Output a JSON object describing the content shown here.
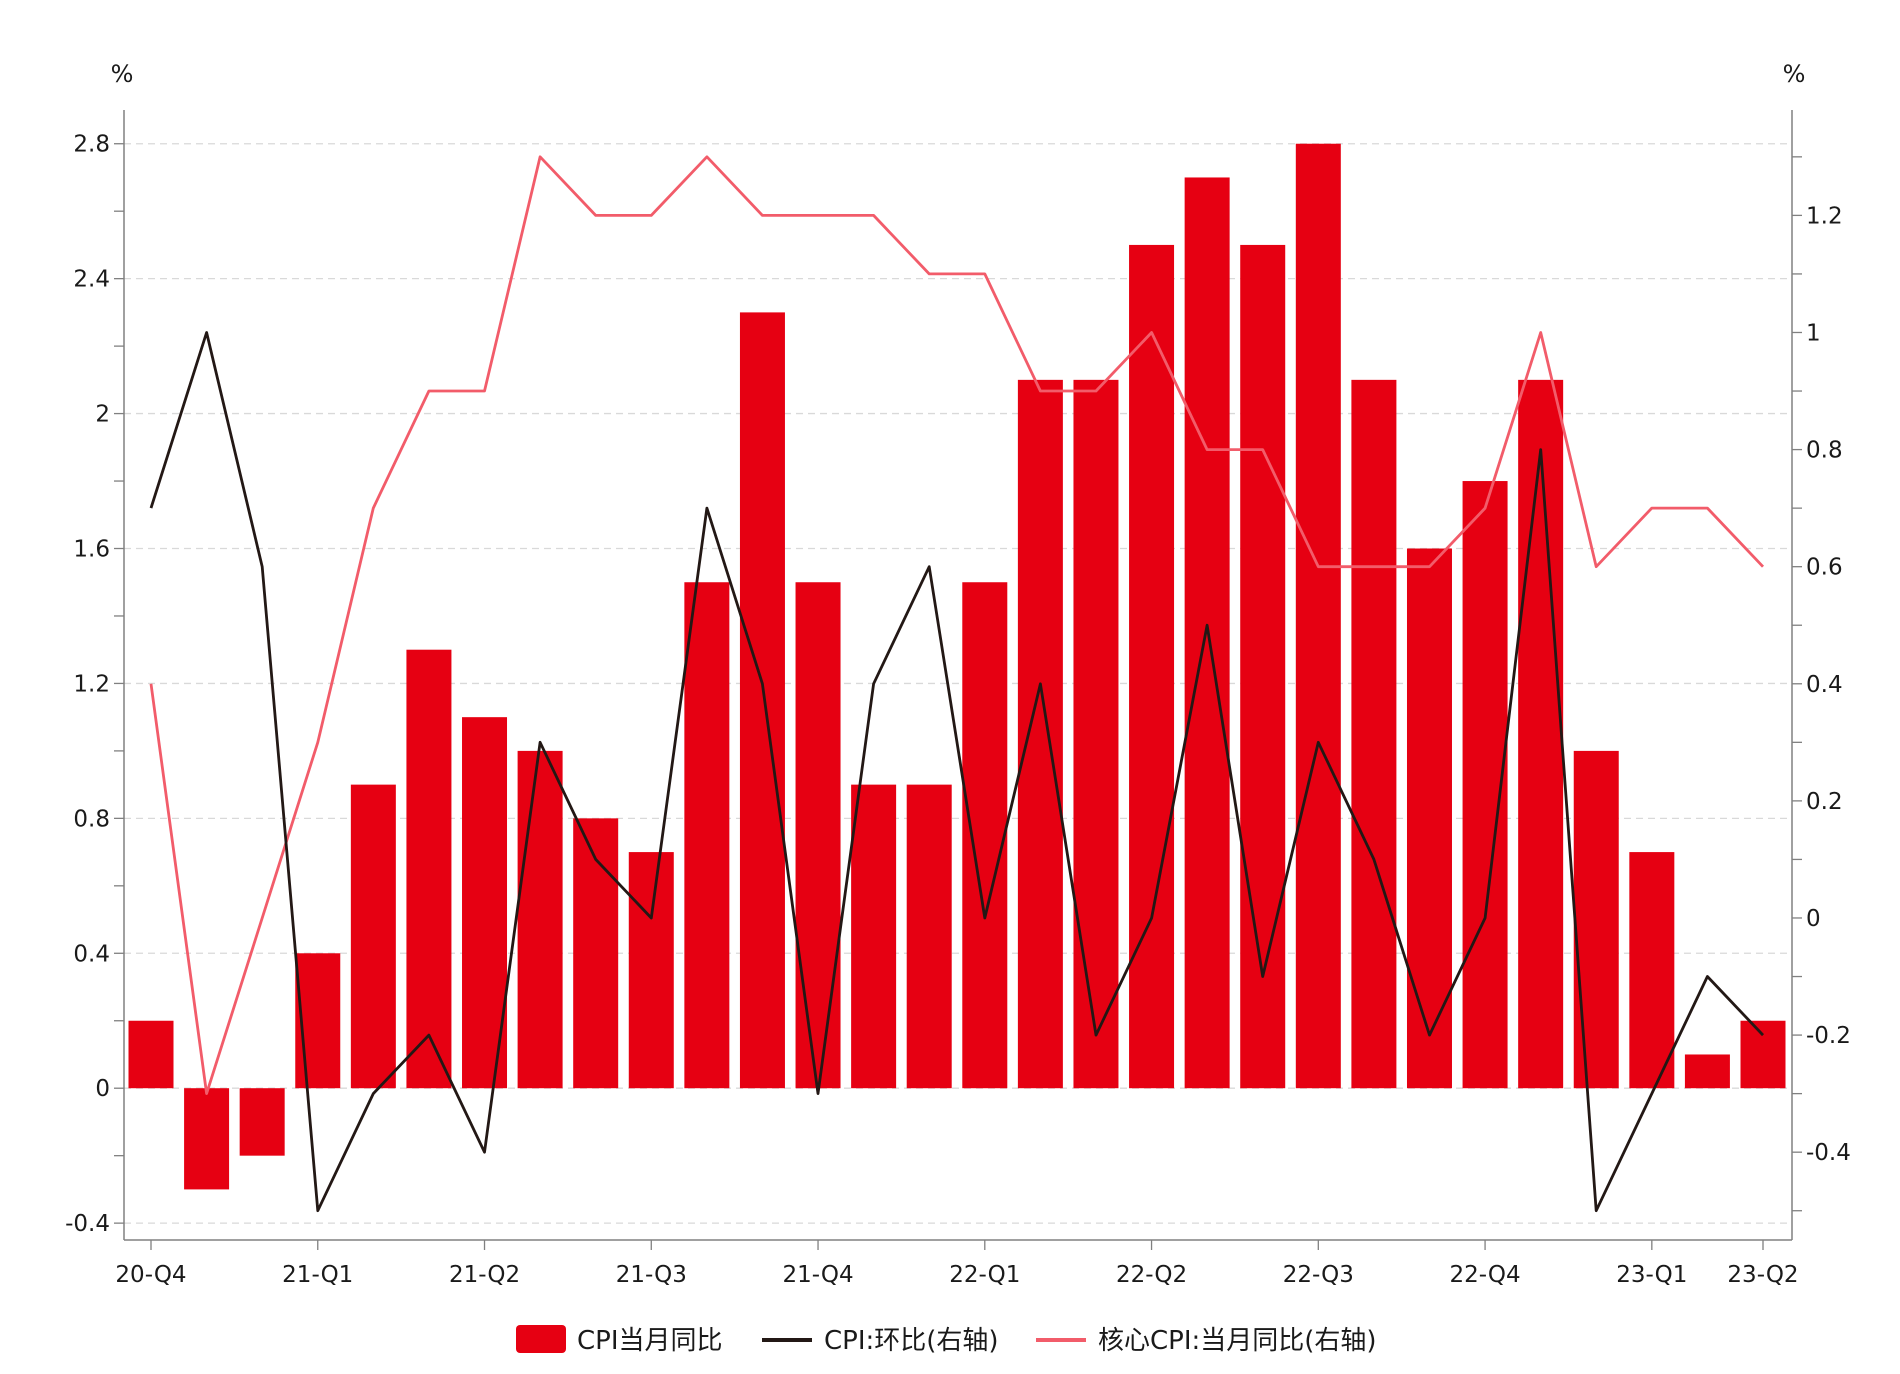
{
  "chart_data": {
    "type": "bar",
    "categories": [
      "20-Q4",
      "",
      "",
      "21-Q1",
      "",
      "",
      "21-Q2",
      "",
      "",
      "21-Q3",
      "",
      "",
      "21-Q4",
      "",
      "",
      "22-Q1",
      "",
      "",
      "22-Q2",
      "",
      "",
      "22-Q3",
      "",
      "",
      "22-Q4",
      "",
      "",
      "23-Q1",
      "",
      "23-Q2"
    ],
    "x_tick_labels": [
      "20-Q4",
      "21-Q1",
      "21-Q2",
      "21-Q3",
      "21-Q4",
      "22-Q1",
      "22-Q2",
      "22-Q3",
      "22-Q4",
      "23-Q1",
      "23-Q2"
    ],
    "x_tick_indices": [
      0,
      3,
      6,
      9,
      12,
      15,
      18,
      21,
      24,
      27,
      29
    ],
    "left_axis": {
      "unit": "%",
      "ylim": [
        -0.45,
        2.9
      ],
      "ticks": [
        -0.4,
        0,
        0.4,
        0.8,
        1.2,
        1.6,
        2,
        2.4,
        2.8
      ],
      "tick_labels": [
        "-0.4",
        "0",
        "0.4",
        "0.8",
        "1.2",
        "1.6",
        "2",
        "2.4",
        "2.8"
      ]
    },
    "right_axis": {
      "unit": "%",
      "ylim": [
        -0.55,
        1.38
      ],
      "ticks": [
        -0.4,
        -0.2,
        0,
        0.2,
        0.4,
        0.6,
        0.8,
        1,
        1.2
      ],
      "tick_labels": [
        "-0.4",
        "-0.2",
        "0",
        "0.2",
        "0.4",
        "0.6",
        "0.8",
        "1",
        "1.2"
      ]
    },
    "series": [
      {
        "name": "CPI当月同比",
        "type": "bar",
        "axis": "left",
        "color": "#e60012",
        "values": [
          0.2,
          -0.3,
          -0.2,
          0.4,
          0.9,
          1.3,
          1.1,
          1.0,
          0.8,
          0.7,
          1.5,
          2.3,
          1.5,
          0.9,
          0.9,
          1.5,
          2.1,
          2.1,
          2.5,
          2.7,
          2.5,
          2.8,
          2.1,
          1.6,
          1.8,
          2.1,
          1.0,
          0.7,
          0.1,
          0.2
        ]
      },
      {
        "name": "CPI:环比(右轴)",
        "type": "line",
        "axis": "right",
        "color": "#231815",
        "values": [
          0.7,
          1.0,
          0.6,
          -0.5,
          -0.3,
          -0.2,
          -0.4,
          0.3,
          0.1,
          0.0,
          0.7,
          0.4,
          -0.3,
          0.4,
          0.6,
          0.0,
          0.4,
          -0.2,
          0.0,
          0.5,
          -0.1,
          0.3,
          0.1,
          -0.2,
          0.0,
          0.8,
          -0.5,
          -0.3,
          -0.1,
          -0.2
        ]
      },
      {
        "name": "核心CPI:当月同比(右轴)",
        "type": "line",
        "axis": "right",
        "color": "#f25c6a",
        "values": [
          0.4,
          -0.3,
          0.0,
          0.3,
          0.7,
          0.9,
          0.9,
          1.3,
          1.2,
          1.2,
          1.3,
          1.2,
          1.2,
          1.2,
          1.1,
          1.1,
          0.9,
          0.9,
          1.0,
          0.8,
          0.8,
          0.6,
          0.6,
          0.6,
          0.7,
          1.0,
          0.6,
          0.7,
          0.7,
          0.6
        ]
      }
    ],
    "grid": true,
    "legend_position": "bottom"
  }
}
